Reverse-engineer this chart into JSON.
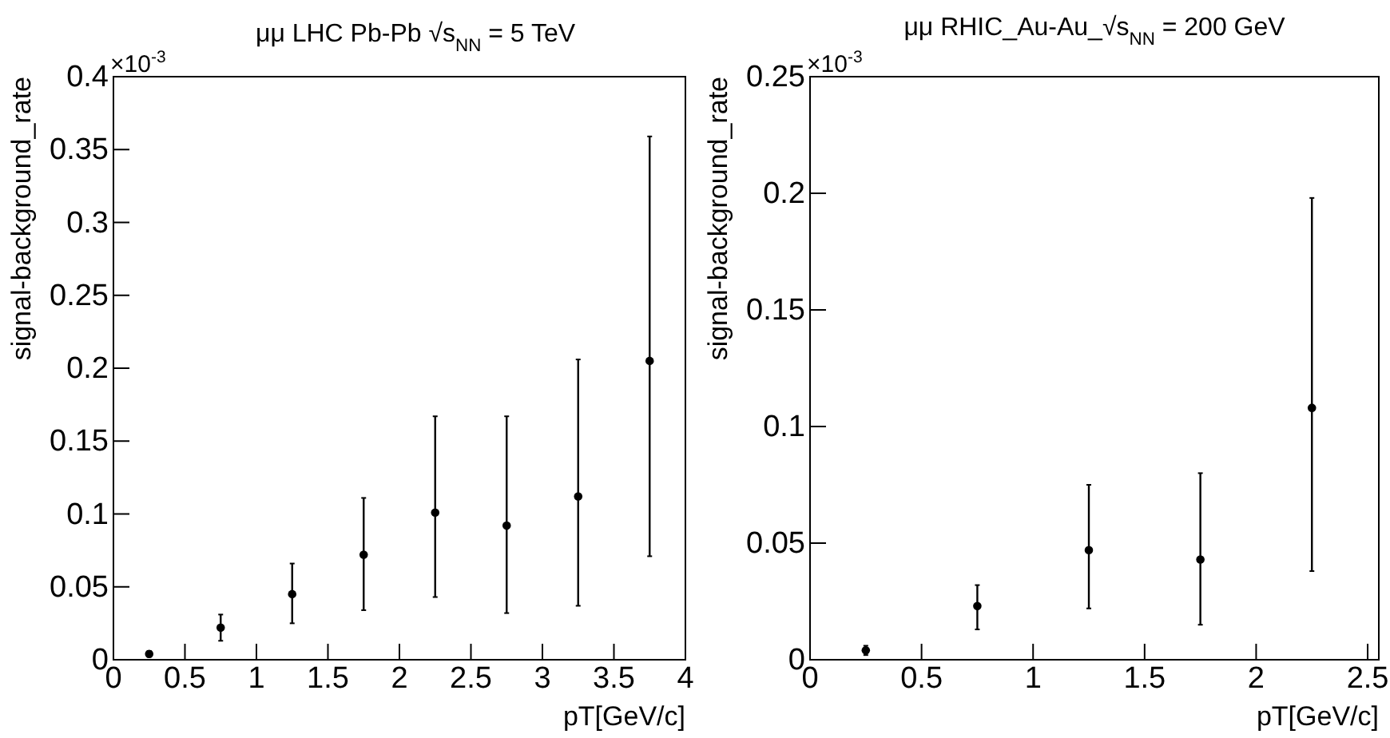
{
  "chart_data": [
    {
      "type": "scatter",
      "title": "μμ LHC Pb-Pb √s$_{NN}$ = 5 TeV",
      "xlabel": "pT[GeV/c]",
      "ylabel": "signal-background_rate",
      "annotations": [
        "×10$^{-3}$"
      ],
      "x": [
        0.25,
        0.75,
        1.25,
        1.75,
        2.25,
        2.75,
        3.25,
        3.75
      ],
      "series": [
        {
          "color": "#000000",
          "values": [
            0.004,
            0.022,
            0.045,
            0.072,
            0.101,
            0.092,
            0.112,
            0.205
          ],
          "errors": [
            0.002,
            [
              0.013,
              0.031
            ],
            [
              0.025,
              0.066
            ],
            [
              0.034,
              0.111
            ],
            [
              0.043,
              0.167
            ],
            [
              0.032,
              0.167
            ],
            [
              0.037,
              0.206
            ],
            [
              0.071,
              0.359
            ]
          ]
        }
      ],
      "xlim": [
        0,
        4
      ],
      "xticks": [
        0,
        0.5,
        1,
        1.5,
        2,
        2.5,
        3,
        3.5,
        4
      ],
      "ylim": [
        0,
        0.4
      ],
      "yticks": [
        0,
        0.05,
        0.1,
        0.15,
        0.2,
        0.25,
        0.3,
        0.35,
        0.4
      ],
      "grid": false,
      "marker": "circle"
    },
    {
      "type": "scatter",
      "title": "μμ RHIC_Au-Au_√s$_{NN}$ = 200 GeV",
      "xlabel": "pT[GeV/c]",
      "ylabel": "signal-background_rate",
      "annotations": [
        "×10$^{-3}$"
      ],
      "x": [
        0.25,
        0.75,
        1.25,
        1.75,
        2.25
      ],
      "series": [
        {
          "color": "#000000",
          "values": [
            0.004,
            0.023,
            0.047,
            0.043,
            0.108
          ],
          "errors": [
            0.002,
            [
              0.013,
              0.032
            ],
            [
              0.022,
              0.075
            ],
            [
              0.015,
              0.08
            ],
            [
              0.038,
              0.198
            ]
          ]
        }
      ],
      "xlim": [
        0,
        2.55
      ],
      "xticks": [
        0,
        0.5,
        1,
        1.5,
        2,
        2.5
      ],
      "ylim": [
        0,
        0.25
      ],
      "yticks": [
        0,
        0.05,
        0.1,
        0.15,
        0.2,
        0.25
      ],
      "grid": false,
      "marker": "circle"
    }
  ]
}
